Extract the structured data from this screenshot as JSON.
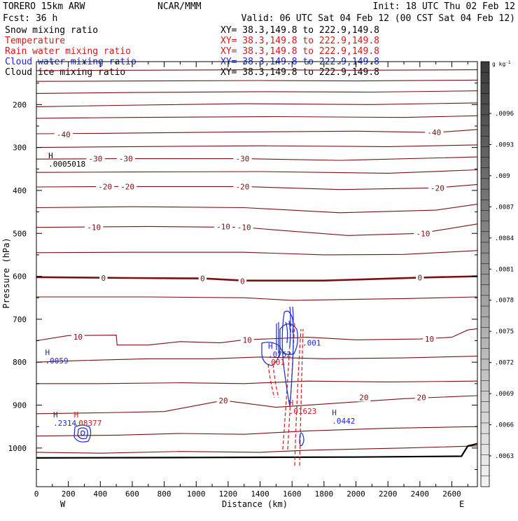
{
  "header": {
    "model": "TORERO  15km ARW",
    "center": "NCAR/MMM",
    "init": "Init: 18 UTC Thu 02 Feb 12",
    "fcst": "Fcst:   36 h",
    "valid": "Valid: 06 UTC Sat 04 Feb 12 (00 CST Sat 04 Feb 12)"
  },
  "colors": {
    "snow": "#000000",
    "temperature": "#7a1010",
    "rain": "#d01a1a",
    "cloud_water": "#1a2acc",
    "cloud_ice": "#000000",
    "axis": "#000000"
  },
  "legend": [
    {
      "label": "Snow mixing ratio",
      "xy": "XY=  38.3,149.8 to 222.9,149.8",
      "color": "#000000"
    },
    {
      "label": "Temperature",
      "xy": "XY=  38.3,149.8 to 222.9,149.8",
      "color": "#d01a1a"
    },
    {
      "label": "Rain water mixing ratio",
      "xy": "XY=  38.3,149.8 to 222.9,149.8",
      "color": "#d01a1a"
    },
    {
      "label": "Cloud water mixing ratio",
      "xy": "XY=  38.3,149.8 to 222.9,149.8",
      "color": "#1a2acc"
    },
    {
      "label": "Cloud ice mixing ratio",
      "xy": "XY=  38.3,149.8 to 222.9,149.8",
      "color": "#000000"
    }
  ],
  "chart_data": {
    "type": "cross-section contour",
    "xlabel": "Distance (km)",
    "ylabel": "Pressure (hPa)",
    "xlim": [
      0,
      2760
    ],
    "ylim": [
      1090,
      100
    ],
    "x_ticks": [
      0,
      200,
      400,
      600,
      800,
      1000,
      1200,
      1400,
      1600,
      1800,
      2000,
      2200,
      2400,
      2600
    ],
    "y_ticks": [
      200,
      300,
      400,
      500,
      600,
      700,
      800,
      900,
      1000
    ],
    "left_end_label": "W",
    "right_end_label": "E",
    "colorbar": {
      "unit": "g kg",
      "unit_exp": "-1",
      "ticks": [
        ".0096",
        ".0093",
        ".009",
        ".0087",
        ".0084",
        ".0081",
        ".0078",
        ".0075",
        ".0072",
        ".0069",
        ".0066",
        ".0063"
      ]
    },
    "temperature_labels": [
      {
        "text": "-40",
        "x": 170,
        "p": 270
      },
      {
        "text": "-40",
        "x": 2490,
        "p": 265
      },
      {
        "text": "-30",
        "x": 370,
        "p": 326
      },
      {
        "text": "-30",
        "x": 560,
        "p": 326
      },
      {
        "text": "-30",
        "x": 1290,
        "p": 326
      },
      {
        "text": "-20",
        "x": 430,
        "p": 391
      },
      {
        "text": "-20",
        "x": 570,
        "p": 391
      },
      {
        "text": "-20",
        "x": 1290,
        "p": 391
      },
      {
        "text": "-20",
        "x": 2510,
        "p": 394
      },
      {
        "text": "-10",
        "x": 360,
        "p": 486
      },
      {
        "text": "-10",
        "x": 1170,
        "p": 484
      },
      {
        "text": "-10",
        "x": 1300,
        "p": 486
      },
      {
        "text": "-10",
        "x": 2420,
        "p": 500
      },
      {
        "text": "0",
        "x": 420,
        "p": 604
      },
      {
        "text": "0",
        "x": 1040,
        "p": 605
      },
      {
        "text": "0",
        "x": 1290,
        "p": 611
      },
      {
        "text": "0",
        "x": 2400,
        "p": 603
      },
      {
        "text": "10",
        "x": 260,
        "p": 741
      },
      {
        "text": "10",
        "x": 1320,
        "p": 748
      },
      {
        "text": "10",
        "x": 2460,
        "p": 746
      },
      {
        "text": "20",
        "x": 1170,
        "p": 889
      },
      {
        "text": "20",
        "x": 2050,
        "p": 882
      },
      {
        "text": "20",
        "x": 2410,
        "p": 882
      }
    ],
    "extrema": [
      {
        "mark": "H",
        "value": ".0005018",
        "x": 75,
        "p": 332,
        "color": "#000000"
      },
      {
        "mark": "H",
        "value": ".0059",
        "x": 55,
        "p": 790,
        "color": "#1a2acc"
      },
      {
        "mark": "H",
        "value": ".2314",
        "x": 105,
        "p": 935,
        "color": "#1a2acc"
      },
      {
        "mark": "H",
        "value": ".08377",
        "x": 235,
        "p": 935,
        "color": "#d01a1a"
      },
      {
        "mark": "H",
        "value": ".0752",
        "x": 1450,
        "p": 775,
        "color": "#1a2acc"
      },
      {
        "mark": "",
        "value": ".001",
        "x": 1440,
        "p": 793,
        "color": "#d01a1a"
      },
      {
        "mark": "",
        "value": ".001",
        "x": 1665,
        "p": 748,
        "color": "#1a2acc"
      },
      {
        "mark": "H",
        "value": ".01623",
        "x": 1580,
        "p": 907,
        "color": "#d01a1a"
      },
      {
        "mark": "H",
        "value": ".0442",
        "x": 1850,
        "p": 930,
        "color": "#1a2acc"
      }
    ],
    "temperature_isotherms": [
      {
        "level": -50,
        "points": [
          [
            0,
            121
          ],
          [
            600,
            120
          ],
          [
            1400,
            119
          ],
          [
            2000,
            120
          ],
          [
            2760,
            119
          ]
        ]
      },
      {
        "level": -50,
        "points": [
          [
            0,
            146
          ],
          [
            700,
            145
          ],
          [
            1400,
            144
          ],
          [
            2000,
            145
          ],
          [
            2760,
            143
          ]
        ]
      },
      {
        "level": -50,
        "points": [
          [
            0,
            174
          ],
          [
            600,
            172
          ],
          [
            1400,
            170
          ],
          [
            2100,
            171
          ],
          [
            2760,
            168
          ]
        ]
      },
      {
        "level": -45,
        "points": [
          [
            0,
            205
          ],
          [
            500,
            202
          ],
          [
            1300,
            198
          ],
          [
            2100,
            200
          ],
          [
            2760,
            196
          ]
        ]
      },
      {
        "level": -42,
        "points": [
          [
            0,
            232
          ],
          [
            600,
            230
          ],
          [
            1500,
            228
          ],
          [
            2300,
            230
          ],
          [
            2760,
            226
          ]
        ]
      },
      {
        "level": -40,
        "points": [
          [
            0,
            268
          ],
          [
            400,
            267
          ],
          [
            1200,
            264
          ],
          [
            2000,
            262
          ],
          [
            2500,
            265
          ],
          [
            2760,
            258
          ]
        ]
      },
      {
        "level": -35,
        "points": [
          [
            0,
            300
          ],
          [
            600,
            298
          ],
          [
            1400,
            296
          ],
          [
            2200,
            298
          ],
          [
            2760,
            294
          ]
        ]
      },
      {
        "level": -30,
        "points": [
          [
            0,
            327
          ],
          [
            500,
            326
          ],
          [
            1300,
            326
          ],
          [
            1900,
            330
          ],
          [
            2760,
            322
          ]
        ]
      },
      {
        "level": -25,
        "points": [
          [
            0,
            358
          ],
          [
            600,
            357
          ],
          [
            1400,
            356
          ],
          [
            2200,
            360
          ],
          [
            2760,
            352
          ]
        ]
      },
      {
        "level": -20,
        "points": [
          [
            0,
            392
          ],
          [
            500,
            391
          ],
          [
            1300,
            391
          ],
          [
            1900,
            398
          ],
          [
            2500,
            394
          ],
          [
            2760,
            386
          ]
        ]
      },
      {
        "level": -15,
        "points": [
          [
            0,
            440
          ],
          [
            600,
            438
          ],
          [
            1300,
            440
          ],
          [
            1900,
            452
          ],
          [
            2500,
            446
          ],
          [
            2760,
            432
          ]
        ]
      },
      {
        "level": -10,
        "points": [
          [
            0,
            486
          ],
          [
            700,
            484
          ],
          [
            1300,
            486
          ],
          [
            1600,
            495
          ],
          [
            1950,
            505
          ],
          [
            2400,
            500
          ],
          [
            2760,
            478
          ]
        ]
      },
      {
        "level": -5,
        "points": [
          [
            0,
            545
          ],
          [
            600,
            544
          ],
          [
            1300,
            544
          ],
          [
            1800,
            550
          ],
          [
            2300,
            549
          ],
          [
            2760,
            540
          ]
        ]
      },
      {
        "level": 0,
        "points": [
          [
            0,
            602
          ],
          [
            600,
            604
          ],
          [
            1040,
            605
          ],
          [
            1300,
            610
          ],
          [
            1800,
            610
          ],
          [
            2400,
            603
          ],
          [
            2760,
            600
          ]
        ]
      },
      {
        "level": 5,
        "points": [
          [
            0,
            648
          ],
          [
            700,
            648
          ],
          [
            1300,
            650
          ],
          [
            1600,
            656
          ],
          [
            2300,
            652
          ],
          [
            2760,
            648
          ]
        ]
      },
      {
        "level": 10,
        "points": [
          [
            0,
            750
          ],
          [
            200,
            738
          ],
          [
            500,
            737
          ],
          [
            505,
            760
          ],
          [
            700,
            760
          ],
          [
            900,
            752
          ],
          [
            1150,
            755
          ],
          [
            1300,
            748
          ],
          [
            1700,
            742
          ],
          [
            2000,
            748
          ],
          [
            2400,
            746
          ],
          [
            2600,
            742
          ],
          [
            2700,
            725
          ],
          [
            2760,
            722
          ]
        ]
      },
      {
        "level": 12,
        "points": [
          [
            0,
            800
          ],
          [
            300,
            796
          ],
          [
            700,
            792
          ],
          [
            1100,
            792
          ],
          [
            1400,
            788
          ],
          [
            1800,
            792
          ],
          [
            2300,
            790
          ],
          [
            2760,
            786
          ]
        ]
      },
      {
        "level": 15,
        "points": [
          [
            0,
            850
          ],
          [
            400,
            850
          ],
          [
            900,
            848
          ],
          [
            1300,
            850
          ],
          [
            1700,
            844
          ],
          [
            2200,
            846
          ],
          [
            2760,
            844
          ]
        ]
      },
      {
        "level": 20,
        "points": [
          [
            0,
            920
          ],
          [
            400,
            918
          ],
          [
            800,
            915
          ],
          [
            1170,
            889
          ],
          [
            1500,
            905
          ],
          [
            1900,
            895
          ],
          [
            2300,
            885
          ],
          [
            2760,
            878
          ]
        ]
      },
      {
        "level": 22,
        "points": [
          [
            0,
            972
          ],
          [
            500,
            970
          ],
          [
            900,
            966
          ],
          [
            1300,
            968
          ],
          [
            1700,
            960
          ],
          [
            2200,
            954
          ],
          [
            2760,
            950
          ]
        ]
      },
      {
        "level": 25,
        "points": [
          [
            0,
            1010
          ],
          [
            400,
            1012
          ],
          [
            900,
            1008
          ],
          [
            1400,
            1010
          ],
          [
            1700,
            1005
          ],
          [
            2300,
            1000
          ],
          [
            2760,
            995
          ]
        ]
      }
    ],
    "ground_surface": [
      [
        0,
        1023
      ],
      [
        1000,
        1022
      ],
      [
        2000,
        1021
      ],
      [
        2660,
        1019
      ],
      [
        2700,
        995
      ],
      [
        2760,
        990
      ]
    ]
  }
}
